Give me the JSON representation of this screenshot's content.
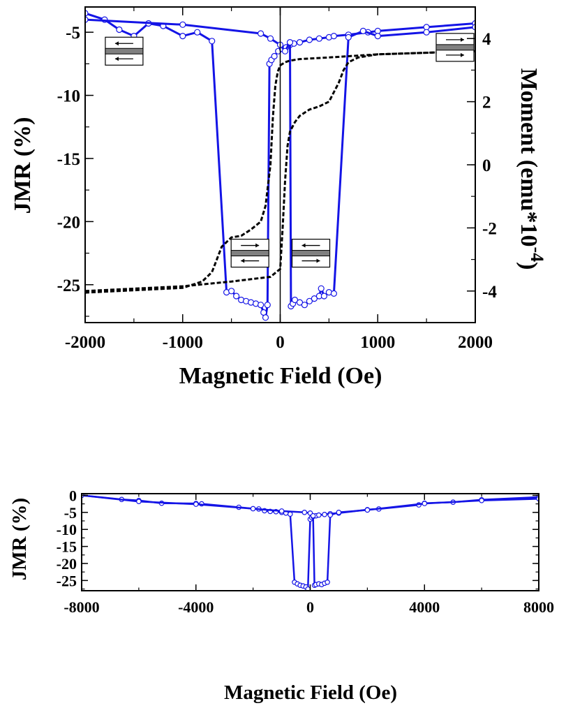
{
  "chart_data": [
    {
      "type": "line",
      "xlabel": "Magnetic Field (Oe)",
      "ylabel": "JMR (%)",
      "y2label": "Moment (emu*10-4)",
      "y2label_main": "Moment (emu*10",
      "y2label_sup": "-4",
      "y2label_end": ")",
      "xlim": [
        -2000,
        2000
      ],
      "ylim": [
        -28,
        -3
      ],
      "y2lim": [
        -5,
        5
      ],
      "xticks": [
        -2000,
        -1000,
        0,
        1000,
        2000
      ],
      "yticks": [
        -5,
        -10,
        -15,
        -20,
        -25
      ],
      "y2ticks": [
        4,
        2,
        0,
        -2,
        -4
      ],
      "xtick_labels": [
        "-2000",
        "-1000",
        "0",
        "1000",
        "2000"
      ],
      "ytick_labels": [
        "-5",
        "-10",
        "-15",
        "-20",
        "-25"
      ],
      "y2tick_labels": [
        "4",
        "2",
        "0",
        "-2",
        "-4"
      ],
      "grid": false,
      "colors": {
        "jmr": "#1414e6",
        "moment": "#000000",
        "marker_fill": "#ffffff"
      },
      "series": [
        {
          "axis": "left",
          "style": "solid-markers",
          "x": [
            -2000,
            -1800,
            -1650,
            -1500,
            -1350,
            -1200,
            -1000,
            -850,
            -700,
            -550,
            -500,
            -450,
            -400,
            -350,
            -300,
            -250,
            -200,
            -170,
            -150,
            -130,
            -110,
            -90,
            -60,
            -20,
            20,
            60,
            100,
            140,
            200,
            300,
            400,
            500,
            550,
            700,
            900,
            1000,
            1500,
            2000
          ],
          "y": [
            -3.5,
            -4.0,
            -4.8,
            -5.3,
            -4.3,
            -4.5,
            -5.3,
            -5.0,
            -5.7,
            -25.6,
            -25.5,
            -25.9,
            -26.2,
            -26.3,
            -26.4,
            -26.5,
            -26.6,
            -27.2,
            -27.6,
            -26.6,
            -7.5,
            -7.2,
            -6.9,
            -6.5,
            -6.3,
            -6.2,
            -6.0,
            -5.9,
            -5.8,
            -5.6,
            -5.5,
            -5.4,
            -5.3,
            -5.2,
            -5.0,
            -4.9,
            -4.6,
            -4.3
          ]
        },
        {
          "axis": "left",
          "style": "solid-markers",
          "x": [
            -2000,
            -1000,
            -200,
            -100,
            0,
            50,
            100,
            110,
            130,
            150,
            200,
            250,
            300,
            350,
            400,
            420,
            450,
            500,
            550,
            700,
            850,
            1000,
            1500,
            2000
          ],
          "y": [
            -4.0,
            -4.4,
            -5.1,
            -5.5,
            -6.0,
            -6.5,
            -5.8,
            -26.7,
            -26.5,
            -26.2,
            -26.4,
            -26.6,
            -26.3,
            -26.1,
            -25.9,
            -25.3,
            -25.9,
            -25.6,
            -25.7,
            -5.4,
            -4.9,
            -5.3,
            -5.0,
            -4.6
          ]
        },
        {
          "axis": "right",
          "style": "dashed",
          "x": [
            -2000,
            -1000,
            -800,
            -700,
            -650,
            -600,
            -550,
            -500,
            -400,
            -300,
            -200,
            -150,
            -100,
            -75,
            -50,
            -25,
            0,
            50,
            100,
            200,
            500,
            1000,
            2000
          ],
          "y": [
            -4.05,
            -3.9,
            -3.7,
            -3.4,
            -3.0,
            -2.6,
            -2.45,
            -2.3,
            -2.25,
            -2.05,
            -1.8,
            -1.3,
            0.0,
            1.5,
            2.5,
            2.95,
            3.15,
            3.25,
            3.3,
            3.35,
            3.4,
            3.5,
            3.6
          ]
        },
        {
          "axis": "right",
          "style": "dashed",
          "x": [
            -2000,
            -1000,
            -500,
            -100,
            0,
            25,
            50,
            75,
            100,
            150,
            200,
            300,
            400,
            500,
            550,
            600,
            650,
            700,
            800,
            1000,
            2000
          ],
          "y": [
            -4.0,
            -3.85,
            -3.7,
            -3.55,
            -3.3,
            -2.0,
            -0.5,
            0.6,
            1.05,
            1.35,
            1.55,
            1.75,
            1.85,
            2.0,
            2.3,
            2.6,
            3.0,
            3.25,
            3.4,
            3.5,
            3.6
          ]
        }
      ],
      "annotations": [
        {
          "x": -1600,
          "y": -6.5,
          "top_arrow": "left",
          "bottom_arrow": "left"
        },
        {
          "x": 1950,
          "y": -6.2,
          "top_arrow": "right",
          "bottom_arrow": "right"
        },
        {
          "x": -310,
          "y": -22.5,
          "top_arrow": "right",
          "bottom_arrow": "left"
        },
        {
          "x": 315,
          "y": -22.5,
          "top_arrow": "left",
          "bottom_arrow": "right"
        }
      ]
    },
    {
      "type": "line",
      "xlabel": "Magnetic Field (Oe)",
      "ylabel": "JMR (%)",
      "xlim": [
        -8000,
        8000
      ],
      "ylim": [
        -28,
        0.5
      ],
      "xticks": [
        -8000,
        -4000,
        0,
        4000,
        8000
      ],
      "yticks": [
        0,
        -5,
        -10,
        -15,
        -20,
        -25
      ],
      "xtick_labels": [
        "-8000",
        "-4000",
        "0",
        "4000",
        "8000"
      ],
      "ytick_labels": [
        "0",
        "-5",
        "-10",
        "-15",
        "-20",
        "-25"
      ],
      "grid": false,
      "colors": {
        "jmr": "#1414e6",
        "marker_fill": "#ffffff"
      },
      "series": [
        {
          "axis": "left",
          "style": "solid-markers",
          "x": [
            -8000,
            -6600,
            -6000,
            -5200,
            -4000,
            -3800,
            -2500,
            -2000,
            -1800,
            -1600,
            -1400,
            -1200,
            -1000,
            -850,
            -700,
            -550,
            -450,
            -350,
            -250,
            -150,
            -80,
            0,
            50,
            100,
            200,
            300,
            500,
            700,
            1000,
            2000,
            2400,
            3800,
            4000,
            5000,
            6000,
            8000
          ],
          "y": [
            0,
            -1.2,
            -1.5,
            -2.3,
            -2.4,
            -2.5,
            -3.5,
            -3.9,
            -4.0,
            -4.5,
            -4.7,
            -4.8,
            -5.0,
            -5.2,
            -5.5,
            -25.5,
            -26.0,
            -26.4,
            -26.6,
            -26.9,
            -27.5,
            -7.0,
            -6.5,
            -6.2,
            -6.0,
            -5.8,
            -5.6,
            -5.4,
            -5.2,
            -4.2,
            -4.0,
            -2.8,
            -2.3,
            -2.0,
            -1.3,
            -0.5
          ]
        },
        {
          "axis": "left",
          "style": "solid-markers",
          "x": [
            -8000,
            -6000,
            -4000,
            -2000,
            -1000,
            -200,
            0,
            100,
            150,
            200,
            300,
            400,
            500,
            600,
            700,
            1000,
            2000,
            4000,
            6000,
            8000
          ],
          "y": [
            0,
            -1.8,
            -2.6,
            -3.9,
            -4.6,
            -5.0,
            -5.2,
            -6.0,
            -26.4,
            -26.2,
            -26.0,
            -26.2,
            -25.8,
            -25.5,
            -5.8,
            -5.0,
            -4.3,
            -2.4,
            -1.5,
            -1.0
          ]
        }
      ]
    }
  ]
}
